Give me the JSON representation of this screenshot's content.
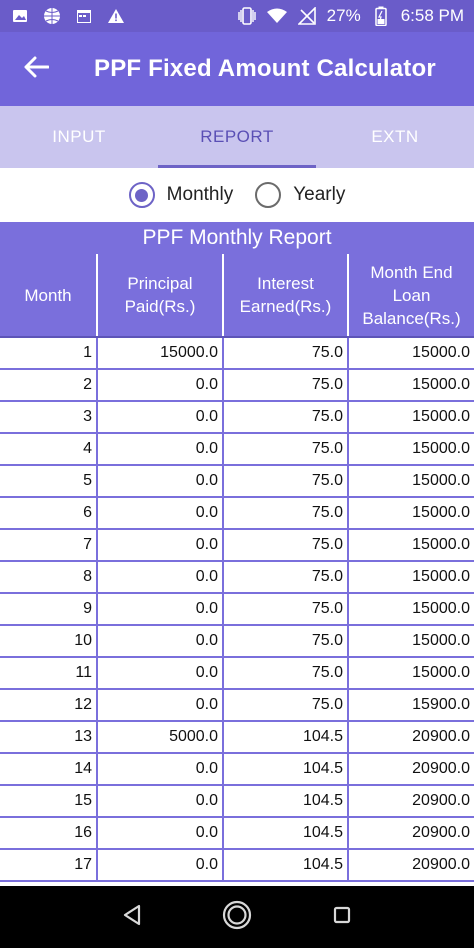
{
  "status_bar": {
    "battery": "27%",
    "time": "6:58 PM",
    "icons": [
      "image-icon",
      "globe-icon",
      "calendar-icon",
      "warning-icon",
      "vibrate-icon",
      "wifi-icon",
      "no-signal-icon",
      "battery-icon"
    ]
  },
  "app_bar": {
    "title": "PPF Fixed Amount Calculator"
  },
  "tabs": [
    {
      "label": "INPUT"
    },
    {
      "label": "REPORT"
    },
    {
      "label": "EXTN"
    }
  ],
  "radio": {
    "monthly": "Monthly",
    "yearly": "Yearly",
    "selected": "Monthly"
  },
  "report": {
    "title": "PPF Monthly Report",
    "headers": [
      "Month",
      "Principal Paid(Rs.)",
      "Interest Earned(Rs.)",
      "Month End Loan Balance(Rs.)"
    ],
    "rows": [
      [
        "1",
        "15000.0",
        "75.0",
        "15000.0"
      ],
      [
        "2",
        "0.0",
        "75.0",
        "15000.0"
      ],
      [
        "3",
        "0.0",
        "75.0",
        "15000.0"
      ],
      [
        "4",
        "0.0",
        "75.0",
        "15000.0"
      ],
      [
        "5",
        "0.0",
        "75.0",
        "15000.0"
      ],
      [
        "6",
        "0.0",
        "75.0",
        "15000.0"
      ],
      [
        "7",
        "0.0",
        "75.0",
        "15000.0"
      ],
      [
        "8",
        "0.0",
        "75.0",
        "15000.0"
      ],
      [
        "9",
        "0.0",
        "75.0",
        "15000.0"
      ],
      [
        "10",
        "0.0",
        "75.0",
        "15000.0"
      ],
      [
        "11",
        "0.0",
        "75.0",
        "15000.0"
      ],
      [
        "12",
        "0.0",
        "75.0",
        "15900.0"
      ],
      [
        "13",
        "5000.0",
        "104.5",
        "20900.0"
      ],
      [
        "14",
        "0.0",
        "104.5",
        "20900.0"
      ],
      [
        "15",
        "0.0",
        "104.5",
        "20900.0"
      ],
      [
        "16",
        "0.0",
        "104.5",
        "20900.0"
      ],
      [
        "17",
        "0.0",
        "104.5",
        "20900.0"
      ]
    ]
  },
  "colors": {
    "status_bar": "#6a5cc9",
    "app_bar": "#7165da",
    "tab_strip": "#c9c5ee",
    "accent": "#6d63c6",
    "table_header": "#7a6fdc"
  },
  "nav_bar": {
    "icons": [
      "back-triangle-icon",
      "home-circle-icon",
      "recents-square-icon"
    ]
  }
}
